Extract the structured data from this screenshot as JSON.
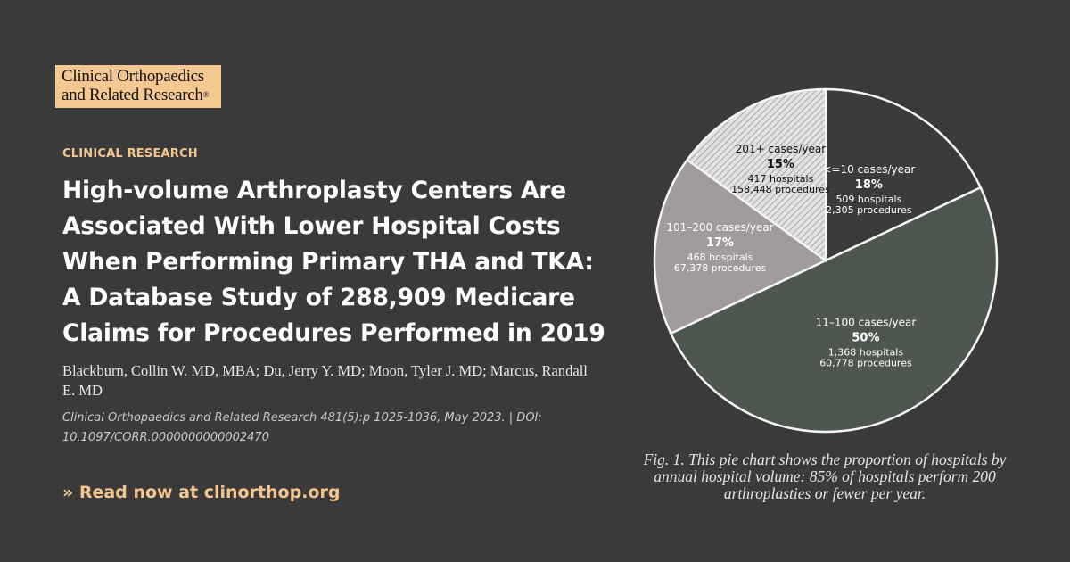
{
  "logo": {
    "line1": "Clinical Orthopaedics",
    "line2": "and Related Research",
    "reg": "®"
  },
  "category": "CLINICAL RESEARCH",
  "title_lines": [
    "High-volume Arthroplasty Centers Are",
    "Associated With Lower Hospital Costs",
    "When Performing Primary THA and TKA:",
    "A Database Study of 288,909 Medicare",
    "Claims for Procedures Performed in 2019"
  ],
  "authors": "Blackburn, Collin W. MD, MBA; Du, Jerry Y. MD; Moon, Tyler J. MD; Marcus, Randall E. MD",
  "citation": "Clinical Orthopaedics and Related Research 481(5):p 1025-1036, May 2023. | DOI: 10.1097/CORR.0000000000002470",
  "cta": "» Read now at clinorthop.org",
  "caption": "Fig. 1. This pie chart shows the proportion of hospitals by annual hospital volume: 85% of hospitals perform 200 arthroplasties or fewer per year.",
  "chart_data": {
    "type": "pie",
    "slices": [
      {
        "label": "<=10 cases/year",
        "percent": 18,
        "pct_text": "18%",
        "hospitals": "509 hospitals",
        "procedures": "2,305 procedures",
        "color": "#3b3b3b",
        "text_color": "#ffffff"
      },
      {
        "label": "11–100 cases/year",
        "percent": 50,
        "pct_text": "50%",
        "hospitals": "1,368 hospitals",
        "procedures": "60,778 procedures",
        "color": "#4d574f",
        "text_color": "#ffffff"
      },
      {
        "label": "101–200 cases/year",
        "percent": 17,
        "pct_text": "17%",
        "hospitals": "468 hospitals",
        "procedures": "67,378 procedures",
        "color": "#a19b9c",
        "text_color": "#ffffff"
      },
      {
        "label": "201+ cases/year",
        "percent": 15,
        "pct_text": "15%",
        "hospitals": "417 hospitals",
        "procedures": "158,448 procedures",
        "color": "#dcdcdc",
        "text_color": "#111111",
        "pattern": "hatched"
      }
    ]
  }
}
